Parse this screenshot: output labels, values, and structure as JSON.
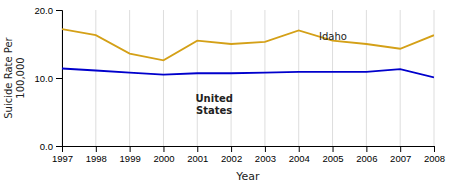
{
  "chart_data": {
    "type": "line",
    "xlabel": "Year",
    "ylabel": "Suicide Rate Per\n100,000",
    "x": [
      1997,
      1998,
      1999,
      2000,
      2001,
      2002,
      2003,
      2004,
      2005,
      2006,
      2007,
      2008
    ],
    "series": [
      {
        "color": "#D4A017",
        "values": [
          17.2,
          16.3,
          13.6,
          12.6,
          15.5,
          15.0,
          15.3,
          17.0,
          15.5,
          15.0,
          14.3,
          16.3
        ]
      },
      {
        "color": "#0000CC",
        "values": [
          11.4,
          11.1,
          10.8,
          10.5,
          10.7,
          10.7,
          10.8,
          10.9,
          10.9,
          10.9,
          11.3,
          10.1
        ]
      }
    ],
    "annotations": [
      {
        "text": "Idaho",
        "x": 2004.6,
        "y": 16.0
      },
      {
        "text": "United\nStates",
        "x": 2001.5,
        "y": 7.8
      }
    ],
    "xlim": [
      1997,
      2008
    ],
    "xticks": [
      1997,
      1998,
      1999,
      2000,
      2001,
      2002,
      2003,
      2004,
      2005,
      2006,
      2007,
      2008
    ],
    "ylim": [
      0.0,
      20.0
    ],
    "yticks": [
      {
        "value": 0.0,
        "label": "0.0"
      },
      {
        "value": 10.0,
        "label": "10.0"
      },
      {
        "value": 20.0,
        "label": "20.0"
      }
    ],
    "grid": "x"
  }
}
